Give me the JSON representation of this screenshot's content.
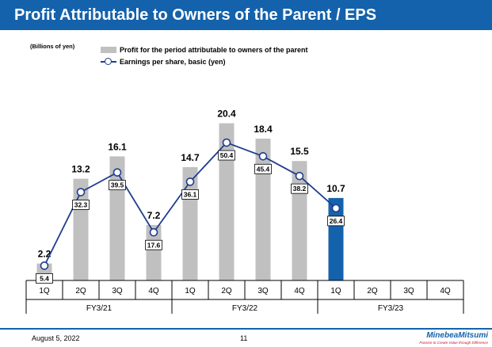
{
  "header": {
    "title": "Profit Attributable to Owners of the Parent / EPS"
  },
  "unit_label": "(Billions of yen)",
  "footer": {
    "date": "August 5, 2022",
    "page": "11"
  },
  "logo": {
    "name": "MinebeaMitsumi",
    "tagline": "Passion to Create Value through Difference"
  },
  "colors": {
    "title_bg": "#1462ab",
    "bar_past": "#c0c0c0",
    "bar_current": "#1462ab",
    "line": "#1f3d8f"
  },
  "chart_data": {
    "type": "bar",
    "categories": [
      "1Q",
      "2Q",
      "3Q",
      "4Q",
      "1Q",
      "2Q",
      "3Q",
      "4Q",
      "1Q",
      "2Q",
      "3Q",
      "4Q"
    ],
    "groups": [
      {
        "label": "FY3/21",
        "span": [
          0,
          3
        ]
      },
      {
        "label": "FY3/22",
        "span": [
          4,
          7
        ]
      },
      {
        "label": "FY3/23",
        "span": [
          8,
          11
        ]
      }
    ],
    "series": [
      {
        "name": "Profit for the period attributable to owners of the parent",
        "type": "bar",
        "values": [
          2.2,
          13.2,
          16.1,
          7.2,
          14.7,
          20.4,
          18.4,
          15.5,
          10.7,
          null,
          null,
          null
        ]
      },
      {
        "name": "Earnings per share, basic (yen)",
        "type": "line",
        "values": [
          5.4,
          32.3,
          39.5,
          17.6,
          36.1,
          50.4,
          45.4,
          38.2,
          26.4,
          null,
          null,
          null
        ]
      }
    ],
    "highlight_index": 8,
    "bar_ylim": [
      0,
      22
    ],
    "line_ylim": [
      0,
      62
    ],
    "legend_position": "top-left",
    "grid": false
  }
}
